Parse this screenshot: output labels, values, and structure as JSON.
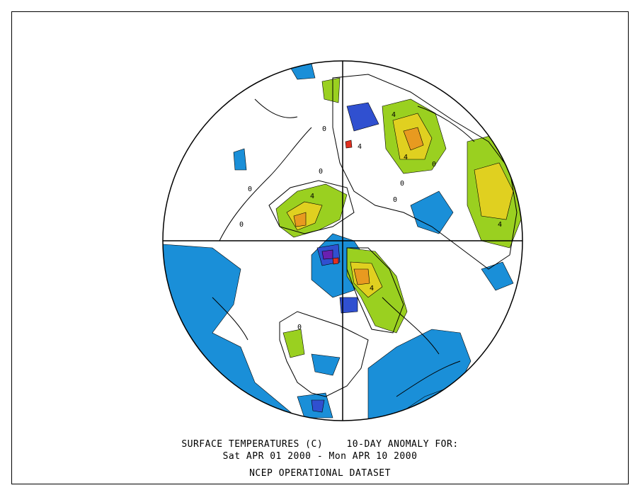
{
  "figure": {
    "title_line1": "SURFACE TEMPERATURES (C)    10-DAY ANOMALY FOR:",
    "title_line2": "Sat APR 01 2000 - Mon APR 10 2000",
    "source": "NCEP OPERATIONAL DATASET"
  },
  "map": {
    "projection": "polar-stereographic-north",
    "contour_labels": [
      "0",
      "0",
      "0",
      "0",
      "0",
      "0",
      "4",
      "4",
      "4",
      "4",
      "4",
      "4",
      "0",
      "0"
    ],
    "colors": {
      "cold_anomaly": "#1a8fd8",
      "strong_cold": "#3050d0",
      "very_cold": "#6a20b0",
      "warm_anomaly": "#9ad020",
      "warmer": "#e0d020",
      "warmest": "#e89a20",
      "hot": "#e03020",
      "coastline": "#000000",
      "contour": "#000000"
    }
  }
}
